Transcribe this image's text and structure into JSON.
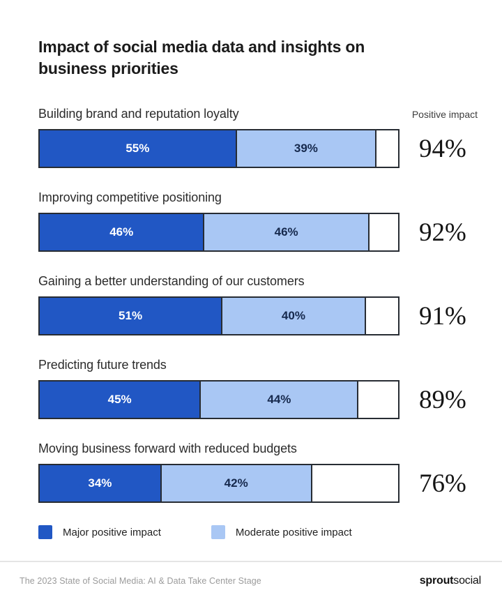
{
  "title": "Impact of social media data and insights on business priorities",
  "column_header": "Positive impact",
  "chart_data": {
    "type": "bar",
    "orientation": "horizontal",
    "stacked": true,
    "title": "Impact of social media data and insights on business priorities",
    "categories": [
      "Building brand and reputation loyalty",
      "Improving competitive positioning",
      "Gaining a better understanding of our customers",
      "Predicting future trends",
      "Moving business forward with reduced budgets"
    ],
    "series": [
      {
        "name": "Major positive impact",
        "color": "#2157c4",
        "values": [
          55,
          46,
          51,
          45,
          34
        ]
      },
      {
        "name": "Moderate positive impact",
        "color": "#a9c7f4",
        "values": [
          39,
          46,
          40,
          44,
          42
        ]
      }
    ],
    "totals_header": "Positive impact",
    "totals": [
      94,
      92,
      91,
      89,
      76
    ],
    "xlim": [
      0,
      100
    ],
    "grid": false,
    "legend_position": "bottom"
  },
  "rows": [
    {
      "label": "Building brand and reputation loyalty",
      "major_label": "55%",
      "moderate_label": "39%",
      "total_label": "94%"
    },
    {
      "label": "Improving competitive positioning",
      "major_label": "46%",
      "moderate_label": "46%",
      "total_label": "92%"
    },
    {
      "label": "Gaining a better understanding of our customers",
      "major_label": "51%",
      "moderate_label": "40%",
      "total_label": "91%"
    },
    {
      "label": "Predicting future trends",
      "major_label": "45%",
      "moderate_label": "44%",
      "total_label": "89%"
    },
    {
      "label": "Moving business forward with reduced budgets",
      "major_label": "34%",
      "moderate_label": "42%",
      "total_label": "76%"
    }
  ],
  "legend": {
    "items": [
      {
        "label": "Major positive impact",
        "color": "#2157c4"
      },
      {
        "label": "Moderate positive impact",
        "color": "#a9c7f4"
      }
    ]
  },
  "footer": {
    "source": "The 2023 State of Social Media: AI & Data Take Center Stage",
    "brand_bold": "sprout",
    "brand_regular": "social"
  },
  "colors": {
    "major": "#2157c4",
    "moderate": "#a9c7f4",
    "bar_border": "#272c33",
    "moderate_text": "#16294d",
    "divider": "#e5e5e5"
  }
}
